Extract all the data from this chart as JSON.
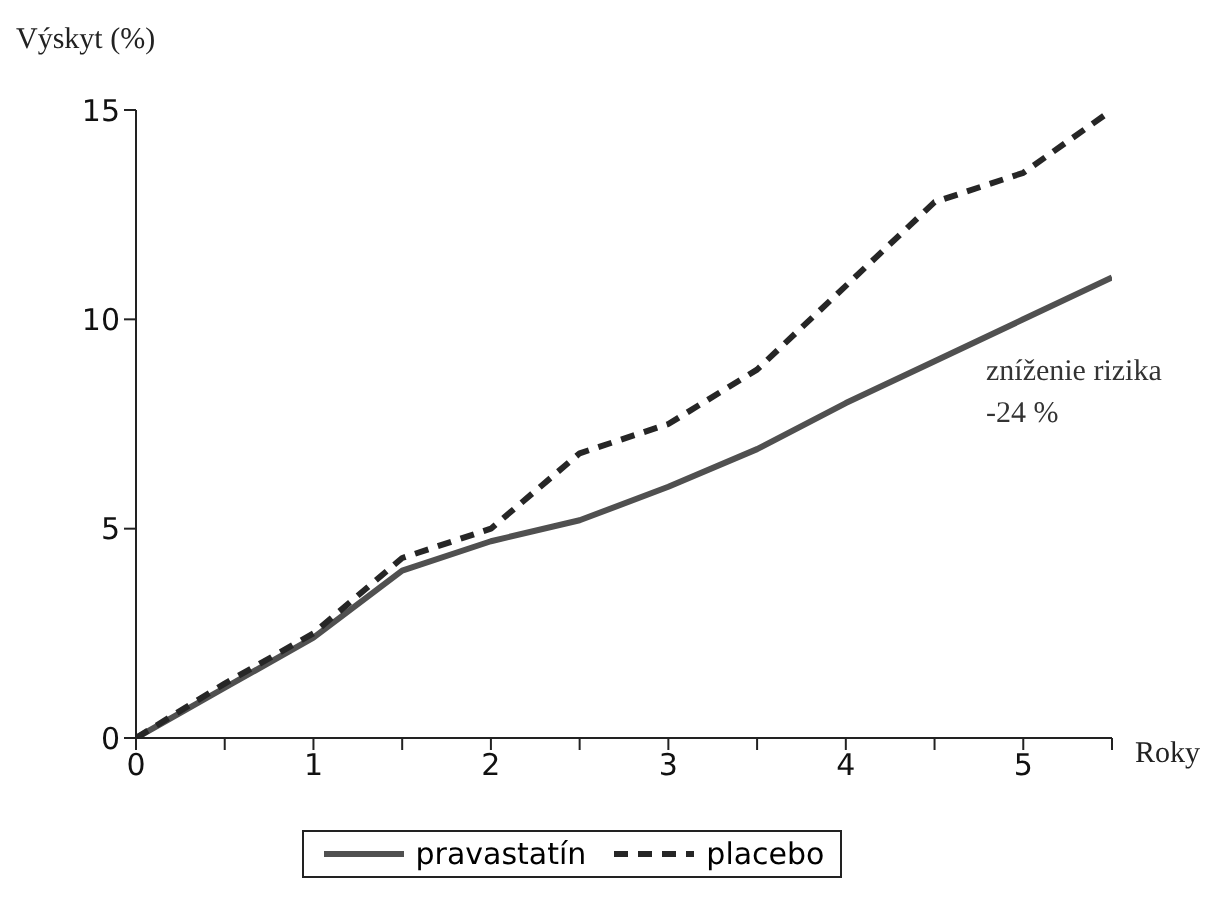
{
  "chart_data": {
    "type": "line",
    "xlabel": "Roky",
    "ylabel": "Výskyt (%)",
    "x": [
      0,
      0.5,
      1,
      1.5,
      2,
      2.5,
      3,
      3.5,
      4,
      4.5,
      5,
      5.5
    ],
    "series": [
      {
        "name": "pravastatín",
        "color": "#505050",
        "line_style": "solid",
        "values": [
          0,
          1.2,
          2.4,
          4.0,
          4.7,
          5.2,
          6.0,
          6.9,
          8.0,
          9.0,
          10.0,
          11.0
        ]
      },
      {
        "name": "placebo",
        "color": "#262626",
        "line_style": "dashed",
        "values": [
          0,
          1.3,
          2.5,
          4.3,
          5.0,
          6.8,
          7.5,
          8.8,
          10.8,
          12.8,
          13.5,
          15.0
        ]
      }
    ],
    "xlim": [
      0,
      5.5
    ],
    "xticks": [
      0,
      {
        "value": 0.5,
        "label": null
      },
      1,
      {
        "value": 1.5,
        "label": null
      },
      2,
      {
        "value": 2.5,
        "label": null
      },
      3,
      {
        "value": 3.5,
        "label": null
      },
      4,
      {
        "value": 4.5,
        "label": null
      },
      5,
      {
        "value": 5.5,
        "label": null
      }
    ],
    "ylim": [
      0,
      15
    ],
    "yticks": [
      0,
      5,
      10,
      15
    ],
    "annotations": [
      "zníženie rizika -24 %"
    ],
    "grid": false,
    "legend": "bottom",
    "marker": "none"
  }
}
